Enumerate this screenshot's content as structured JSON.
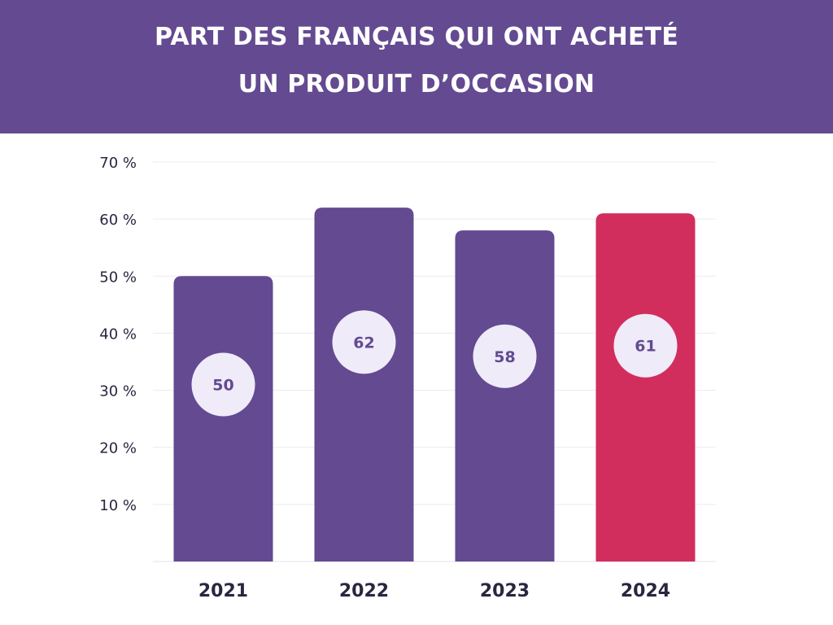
{
  "header": {
    "title_line1": "PART DES FRANÇAIS QUI ONT ACHETÉ",
    "title_line2": "UN PRODUIT D’OCCASION"
  },
  "colors": {
    "header_bg": "#634a91",
    "bar_default": "#634a91",
    "bar_highlight": "#d22e5d",
    "label_bubble": "#efebf8",
    "label_text": "#634a91"
  },
  "chart_data": {
    "type": "bar",
    "title": "PART DES FRANÇAIS QUI ONT ACHETÉ UN PRODUIT D’OCCASION",
    "categories": [
      "2021",
      "2022",
      "2023",
      "2024"
    ],
    "values": [
      50,
      62,
      58,
      61
    ],
    "value_labels": [
      "50",
      "62",
      "58",
      "61"
    ],
    "highlight": "2024",
    "ylim": [
      0,
      70
    ],
    "yticks": [
      10,
      20,
      30,
      40,
      50,
      60,
      70
    ],
    "ytick_labels": [
      "10 %",
      "20 %",
      "30 %",
      "40 %",
      "50 %",
      "60 %",
      "70 %"
    ],
    "grid": true,
    "legend": "none",
    "xlabel": "",
    "ylabel": ""
  }
}
